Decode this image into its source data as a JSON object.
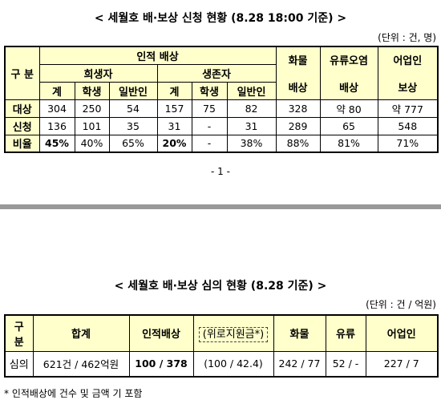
{
  "doc1": {
    "title": "< 세월호 배·보상 신청 현황 (8.28 18:00 기준) >",
    "unit": "(단위 : 건, 명)",
    "header": {
      "category": "구 분",
      "group": "인적 배상",
      "victims": "희생자",
      "survivors": "생존자",
      "cols": [
        "계",
        "학생",
        "일반인",
        "계",
        "학생",
        "일반인"
      ],
      "cargo": [
        "화물",
        "배상"
      ],
      "oil": [
        "유류오염",
        "배상"
      ],
      "fishery": [
        "어업인",
        "보상"
      ]
    },
    "rows": [
      [
        "대상",
        "304",
        "250",
        "54",
        "157",
        "75",
        "82",
        "328",
        "약 80",
        "약 777"
      ],
      [
        "신청",
        "136",
        "101",
        "35",
        "31",
        "-",
        "31",
        "289",
        "65",
        "548"
      ],
      [
        "비율",
        "45%",
        "40%",
        "65%",
        "20%",
        "-",
        "38%",
        "88%",
        "81%",
        "71%"
      ]
    ]
  },
  "page_number": "- 1 -",
  "doc2": {
    "title": "< 세월호 배·보상 심의 현황 (8.28 기준) >",
    "unit": "(단위 : 건 / 억원)",
    "header": [
      "구\n분",
      "합계",
      "인적배상",
      "(위로지원금*)",
      "화물",
      "유류",
      "어업인"
    ],
    "row": [
      "심의",
      "621건 / 462억원",
      "100 / 378",
      "(100 / 42.4)",
      "242 / 77",
      "52 / -",
      "227 / 7"
    ],
    "footnote": "* 인적배상에 건수 및 금액 기 포함"
  }
}
